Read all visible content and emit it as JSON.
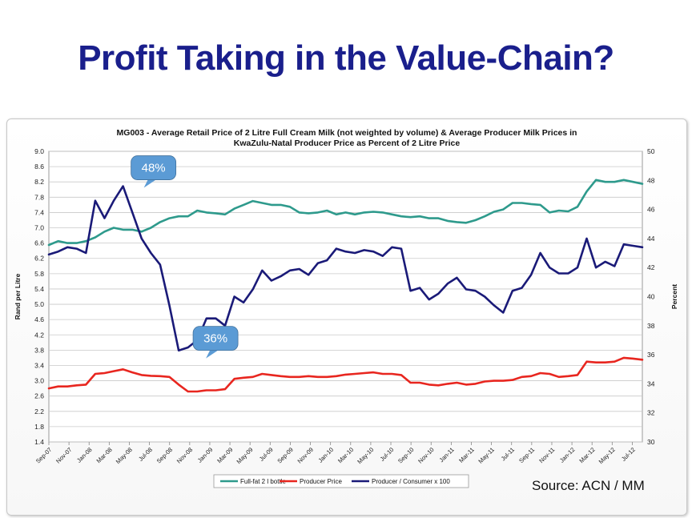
{
  "slide": {
    "title": "Profit Taking in the Value-Chain?",
    "source": "Source: ACN / MM"
  },
  "chart_data": {
    "type": "line",
    "title": "MG003 - Average Retail Price of 2 Litre Full Cream Milk (not weighted by volume) & Average Producer Milk Prices in",
    "subtitle": "KwaZulu-Natal Producer Price as Percent of 2 Litre Price",
    "ylabel": "Rand per Litre",
    "y2label": "Percent",
    "ylim": [
      1.4,
      9.0
    ],
    "y2lim": [
      30,
      50
    ],
    "yticks": [
      "1.4",
      "1.8",
      "2.2",
      "2.6",
      "3.0",
      "3.4",
      "3.8",
      "4.2",
      "4.6",
      "5.0",
      "5.4",
      "5.8",
      "6.2",
      "6.6",
      "7.0",
      "7.4",
      "7.8",
      "8.2",
      "8.6",
      "9.0"
    ],
    "y2ticks": [
      "30",
      "32",
      "34",
      "36",
      "38",
      "40",
      "42",
      "44",
      "46",
      "48",
      "50"
    ],
    "xticks": [
      "Sep-07",
      "Nov-07",
      "Jan-08",
      "Mar-08",
      "May-08",
      "Jul-08",
      "Sep-08",
      "Nov-08",
      "Jan-09",
      "Mar-09",
      "May-09",
      "Jul-09",
      "Sep-09",
      "Nov-09",
      "Jan-10",
      "Mar-10",
      "May-10",
      "Jul-10",
      "Sep-10",
      "Nov-10",
      "Jan-11",
      "Mar-11",
      "May-11",
      "Jul-11",
      "Sep-11",
      "Nov-11",
      "Jan-12",
      "Mar-12",
      "May-12",
      "Jul-12"
    ],
    "grid": true,
    "legend_position": "bottom",
    "series": [
      {
        "name": "Full-fat 2 l bottle",
        "color": "#2e9a8c",
        "axis": "left",
        "values": [
          6.55,
          6.65,
          6.6,
          6.6,
          6.65,
          6.75,
          6.9,
          7.0,
          6.95,
          6.95,
          6.9,
          7.0,
          7.15,
          7.25,
          7.3,
          7.3,
          7.45,
          7.4,
          7.38,
          7.35,
          7.5,
          7.6,
          7.7,
          7.65,
          7.6,
          7.6,
          7.55,
          7.4,
          7.38,
          7.4,
          7.45,
          7.35,
          7.4,
          7.35,
          7.4,
          7.42,
          7.4,
          7.35,
          7.3,
          7.28,
          7.3,
          7.25,
          7.25,
          7.18,
          7.15,
          7.13,
          7.2,
          7.3,
          7.42,
          7.48,
          7.65,
          7.65,
          7.62,
          7.6,
          7.4,
          7.45,
          7.43,
          7.55,
          7.95,
          8.25,
          8.2,
          8.2,
          8.25,
          8.2,
          8.15
        ]
      },
      {
        "name": "Producer Price",
        "color": "#e8261f",
        "axis": "left",
        "values": [
          2.8,
          2.85,
          2.85,
          2.88,
          2.9,
          3.18,
          3.2,
          3.25,
          3.3,
          3.22,
          3.15,
          3.13,
          3.12,
          3.1,
          2.9,
          2.72,
          2.72,
          2.75,
          2.75,
          2.78,
          3.05,
          3.08,
          3.1,
          3.18,
          3.15,
          3.12,
          3.1,
          3.1,
          3.12,
          3.1,
          3.1,
          3.12,
          3.16,
          3.18,
          3.2,
          3.22,
          3.18,
          3.18,
          3.15,
          2.95,
          2.95,
          2.9,
          2.88,
          2.92,
          2.95,
          2.9,
          2.92,
          2.98,
          3.0,
          3.0,
          3.02,
          3.1,
          3.12,
          3.2,
          3.18,
          3.1,
          3.12,
          3.15,
          3.5,
          3.48,
          3.48,
          3.5,
          3.6,
          3.58,
          3.55
        ]
      },
      {
        "name": "Producer / Consumer x 100",
        "color": "#1a1a78",
        "axis": "right",
        "values": [
          42.9,
          43.1,
          43.4,
          43.3,
          43.0,
          46.6,
          45.4,
          46.6,
          47.6,
          45.8,
          44.0,
          43.0,
          42.2,
          39.4,
          36.3,
          36.5,
          37.0,
          38.5,
          38.5,
          38.0,
          40.0,
          39.6,
          40.5,
          41.8,
          41.1,
          41.4,
          41.8,
          41.9,
          41.5,
          42.3,
          42.5,
          43.3,
          43.1,
          43.0,
          43.2,
          43.1,
          42.8,
          43.4,
          43.3,
          40.4,
          40.6,
          39.8,
          40.2,
          40.9,
          41.3,
          40.5,
          40.4,
          40.0,
          39.4,
          38.9,
          40.4,
          40.6,
          41.5,
          43.0,
          42.0,
          41.6,
          41.6,
          42.0,
          44.0,
          42.0,
          42.4,
          42.1,
          43.6,
          43.5,
          43.4
        ]
      }
    ],
    "annotations": [
      {
        "text": "48%"
      },
      {
        "text": "36%"
      }
    ]
  }
}
